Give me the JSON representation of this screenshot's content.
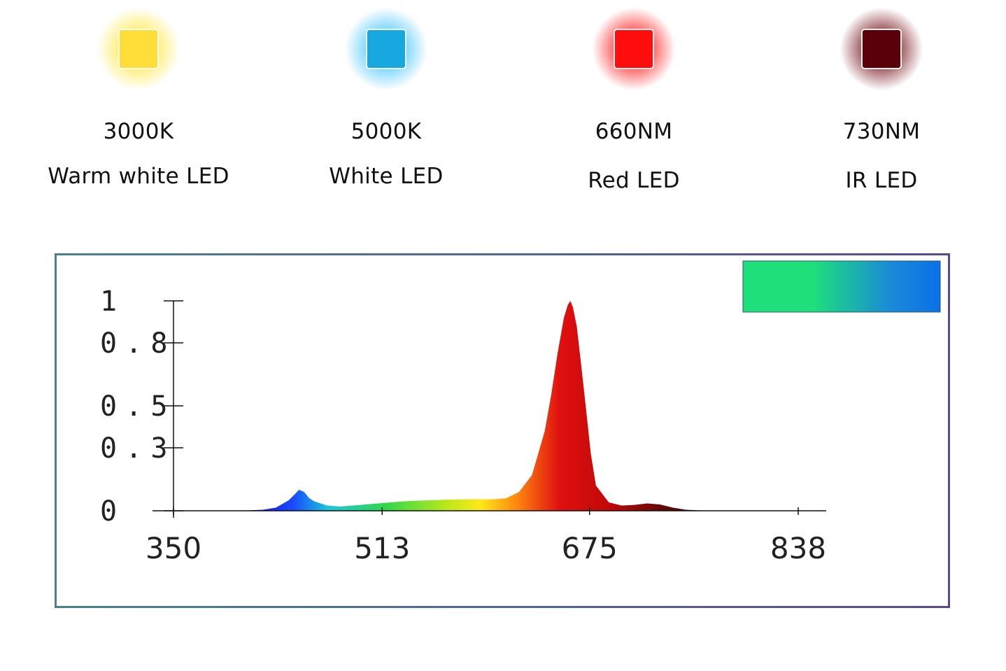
{
  "leds": [
    {
      "spec": "3000K",
      "name": "Warm white LED",
      "color": "#ffde3a",
      "glow": "#ffe84a"
    },
    {
      "spec": "5000K",
      "name": "White LED",
      "color": "#17a8e0",
      "glow": "#4cc8ff"
    },
    {
      "spec": "660NM",
      "name": "Red LED",
      "color": "#ff0d0d",
      "glow": "#ff2a2a"
    },
    {
      "spec": "730NM",
      "name": "IR LED",
      "color": "#5a0008",
      "glow": "#7a1a22"
    }
  ],
  "chart_data": {
    "type": "area",
    "title": "",
    "xlabel": "",
    "ylabel": "",
    "xlim": [
      350,
      880
    ],
    "ylim": [
      0,
      1
    ],
    "x_ticks": [
      350,
      513,
      675,
      838
    ],
    "x_tick_labels": [
      "350",
      "513",
      "675",
      "838"
    ],
    "y_ticks": [
      0,
      0.3,
      0.5,
      0.8,
      1
    ],
    "y_tick_labels": [
      "0",
      "0.3",
      "0.5",
      "0.8",
      "1"
    ],
    "grid": false,
    "legend_colors": [
      "#1ee07a",
      "#0a70e8"
    ],
    "series": [
      {
        "x": [
          350,
          400,
          420,
          430,
          440,
          445,
          448,
          452,
          456,
          460,
          465,
          470,
          480,
          490,
          500,
          510,
          520,
          530,
          540,
          550,
          560,
          570,
          580,
          590,
          600,
          610,
          620,
          630,
          640,
          645,
          650,
          655,
          658,
          660,
          662,
          665,
          668,
          672,
          676,
          680,
          690,
          700,
          710,
          720,
          730,
          740,
          750,
          760,
          780,
          800,
          850,
          880
        ],
        "y": [
          0,
          0,
          0.005,
          0.015,
          0.05,
          0.08,
          0.1,
          0.09,
          0.06,
          0.045,
          0.035,
          0.025,
          0.02,
          0.025,
          0.03,
          0.035,
          0.04,
          0.045,
          0.048,
          0.05,
          0.052,
          0.054,
          0.055,
          0.055,
          0.055,
          0.06,
          0.09,
          0.17,
          0.38,
          0.55,
          0.75,
          0.92,
          0.98,
          1.0,
          0.97,
          0.88,
          0.72,
          0.5,
          0.27,
          0.12,
          0.04,
          0.025,
          0.028,
          0.035,
          0.03,
          0.015,
          0.005,
          0.002,
          0,
          0,
          0,
          0
        ]
      }
    ]
  }
}
